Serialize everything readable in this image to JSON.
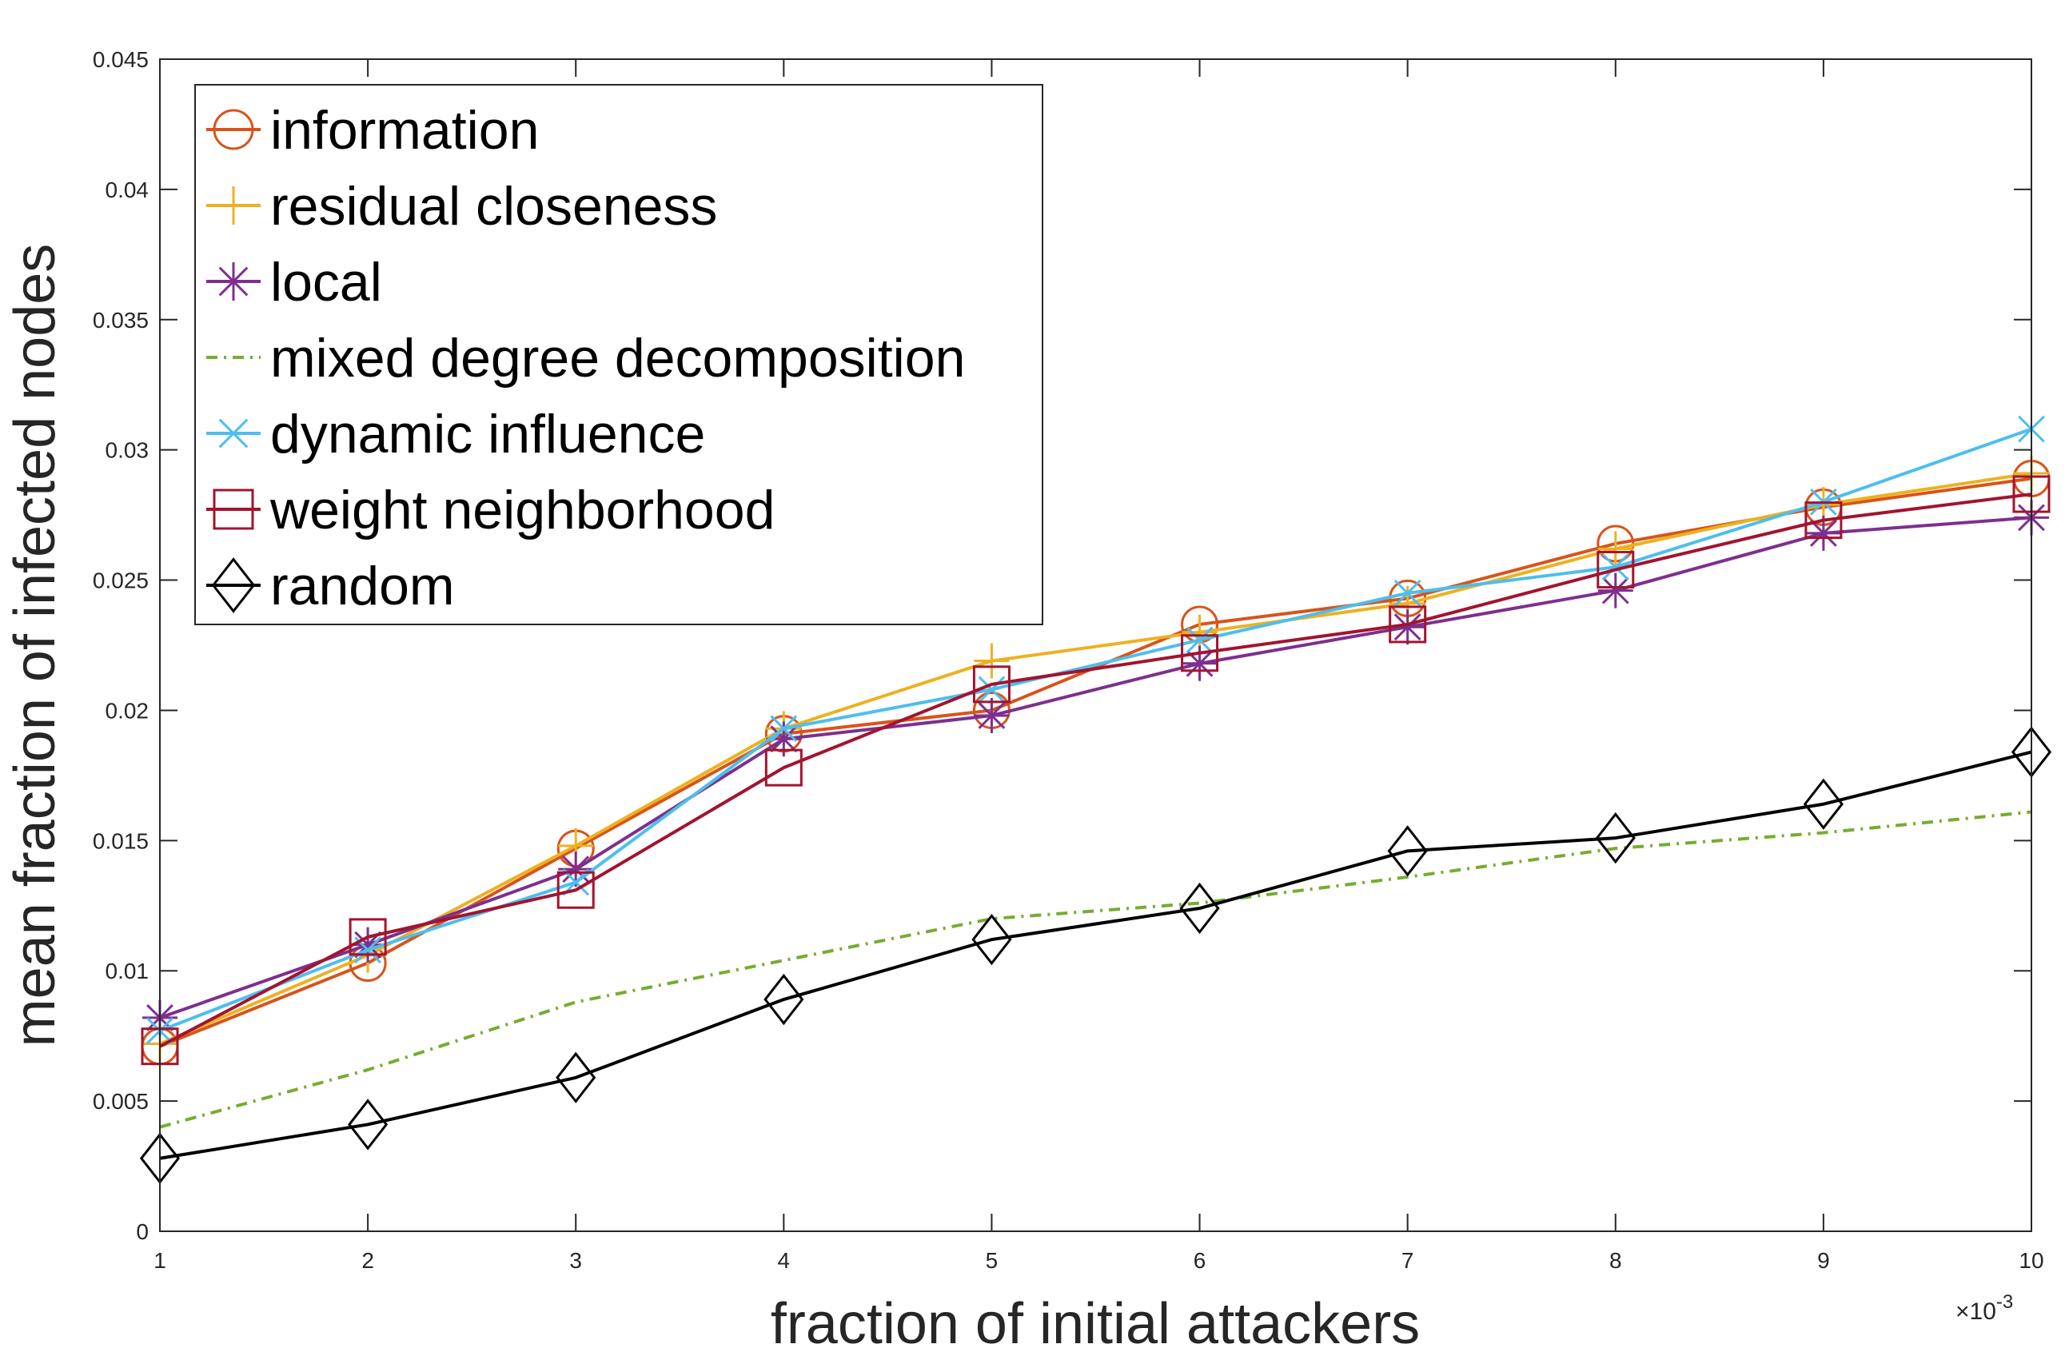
{
  "chart_data": {
    "type": "line",
    "xlabel": "fraction of initial attackers",
    "ylabel": "mean fraction of infected nodes",
    "x_multiplier_label": "×10",
    "x_multiplier_exponent": "-3",
    "x": [
      1,
      2,
      3,
      4,
      5,
      6,
      7,
      8,
      9,
      10
    ],
    "x_ticks": [
      "1",
      "2",
      "3",
      "4",
      "5",
      "6",
      "7",
      "8",
      "9",
      "10"
    ],
    "xlim": [
      1,
      10
    ],
    "ylim": [
      0,
      0.045
    ],
    "y_ticks": [
      0,
      0.005,
      0.01,
      0.015,
      0.02,
      0.025,
      0.03,
      0.035,
      0.04,
      0.045
    ],
    "y_tick_labels": [
      "0",
      "0.005",
      "0.01",
      "0.015",
      "0.02",
      "0.025",
      "0.03",
      "0.035",
      "0.04",
      "0.045"
    ],
    "grid": false,
    "legend_position": "top-left",
    "series": [
      {
        "name": "information",
        "color": "#D95319",
        "marker": "circle",
        "dash": "solid",
        "values": [
          0.0071,
          0.0103,
          0.0147,
          0.0191,
          0.02,
          0.0233,
          0.0243,
          0.0264,
          0.0278,
          0.0289
        ]
      },
      {
        "name": "residual closeness",
        "color": "#EDB120",
        "marker": "plus",
        "dash": "solid",
        "values": [
          0.0072,
          0.0106,
          0.0148,
          0.0193,
          0.0219,
          0.023,
          0.0241,
          0.0262,
          0.0279,
          0.0291
        ]
      },
      {
        "name": "local",
        "color": "#7E2F8E",
        "marker": "star",
        "dash": "solid",
        "values": [
          0.0082,
          0.011,
          0.0139,
          0.0189,
          0.0198,
          0.0218,
          0.0232,
          0.0246,
          0.0268,
          0.0274
        ]
      },
      {
        "name": "mixed degree decomposition",
        "color": "#77AC30",
        "marker": "none",
        "dash": "dashdot",
        "values": [
          0.004,
          0.0062,
          0.0088,
          0.0104,
          0.012,
          0.0126,
          0.0136,
          0.0147,
          0.0153,
          0.0161
        ]
      },
      {
        "name": "dynamic influence",
        "color": "#4DBEEE",
        "marker": "x",
        "dash": "solid",
        "values": [
          0.0077,
          0.0108,
          0.0134,
          0.0193,
          0.0208,
          0.0227,
          0.0245,
          0.0255,
          0.028,
          0.0308
        ]
      },
      {
        "name": "weight neighborhood",
        "color": "#A2142F",
        "marker": "square",
        "dash": "solid",
        "values": [
          0.0071,
          0.0113,
          0.0131,
          0.0178,
          0.021,
          0.0222,
          0.0233,
          0.0254,
          0.0273,
          0.0283
        ]
      },
      {
        "name": "random",
        "color": "#000000",
        "marker": "diamond",
        "dash": "solid",
        "values": [
          0.0028,
          0.0041,
          0.0059,
          0.0089,
          0.0112,
          0.0124,
          0.0146,
          0.0151,
          0.0164,
          0.0184
        ]
      }
    ]
  }
}
